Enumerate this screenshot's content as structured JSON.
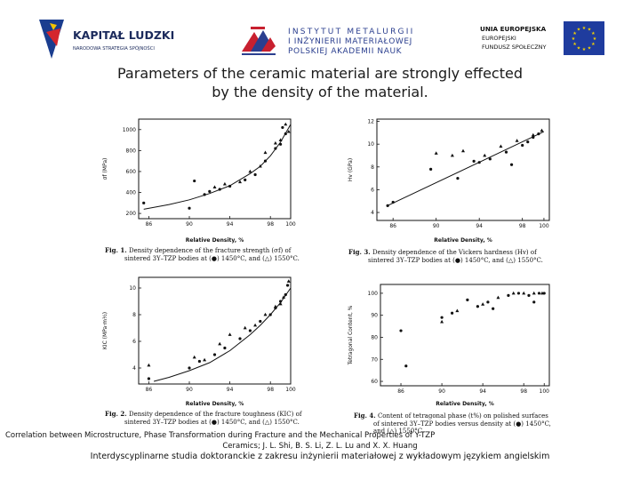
{
  "header": {
    "kapital_ludzki": {
      "title": "KAPITAŁ LUDZKI",
      "subtitle": "NARODOWA STRATEGIA SPÓJNOŚCI"
    },
    "institute": {
      "line1": "INSTYTUT METALURGII",
      "line2": "I INŻYNIERII MATERIAŁOWEJ",
      "line3": "POLSKIEJ AKADEMII NAUK"
    },
    "eu": {
      "line1": "UNIA EUROPEJSKA",
      "line2": "EUROPEJSKI",
      "line3": "FUNDUSZ SPOŁECZNY"
    }
  },
  "slide_title": {
    "line1": "Parameters of the ceramic material are strongly effected",
    "line2": "by the density of the material."
  },
  "figures": {
    "fig1": {
      "caption_label": "Fig. 1.",
      "caption_line1": "Density dependence of the fracture strength (σf) of",
      "caption_line2": "sintered 3Y–TZP bodies at (●) 1450°C, and (△) 1550°C.",
      "xlabel": "Relative Density, %",
      "ylabel": "σf (MPa)"
    },
    "fig2": {
      "caption_label": "Fig. 2.",
      "caption_line1": "Density dependence of the fracture toughness (KIC) of",
      "caption_line2": "sintered 3Y–TZP bodies at (●) 1450°C, and (△) 1550°C.",
      "xlabel": "Relative Density, %",
      "ylabel": "KIC (MPa·m½)"
    },
    "fig3": {
      "caption_label": "Fig. 3.",
      "caption_line1": "Density dependence of the Vickers hardness (Hv) of",
      "caption_line2": "sintered 3Y–TZP bodies at (●) 1450°C, and (△) 1550°C.",
      "xlabel": "Relative Density, %",
      "ylabel": "Hv (GPa)"
    },
    "fig4": {
      "caption_label": "Fig. 4.",
      "caption_line1": "Content of tetragonal phase (t%) on polished surfaces",
      "caption_line2": "of sintered 3Y–TZP bodies versus density at (●) 1450°C,",
      "caption_line3": "and (△) 1550°C.",
      "xlabel": "Relative Density, %",
      "ylabel": "Tetragonal Content, %"
    }
  },
  "footer": {
    "line1": "Correlation between Microstructure, Phase Transformation during Fracture and the Mechanical Properties of Y-TZP",
    "line2": "Ceramics; J. L. Shi, B. S. Li, Z. L. Lu  and X. X. Huang",
    "line3": "Interdyscyplinarne studia doktoranckie z zakresu inżynierii materiałowej z wykładowym językiem angielskim"
  },
  "chart_data": [
    {
      "type": "scatter",
      "id": "fig1",
      "title": "Density dependence of the fracture strength",
      "xlabel": "Relative Density, %",
      "ylabel": "σf (MPa)",
      "xlim": [
        85,
        100
      ],
      "ylim": [
        150,
        1100
      ],
      "xticks": [
        86,
        90,
        94,
        98,
        100
      ],
      "yticks": [
        200,
        400,
        600,
        800,
        1000
      ],
      "series": [
        {
          "name": "1450°C",
          "marker": "circle",
          "points": [
            [
              85.5,
              300
            ],
            [
              90,
              250
            ],
            [
              90.5,
              510
            ],
            [
              91.5,
              380
            ],
            [
              92,
              410
            ],
            [
              93,
              430
            ],
            [
              94,
              460
            ],
            [
              95.5,
              520
            ],
            [
              96.5,
              570
            ],
            [
              97.5,
              700
            ],
            [
              98.5,
              820
            ],
            [
              99,
              860
            ],
            [
              99.5,
              960
            ],
            [
              99.2,
              1020
            ]
          ]
        },
        {
          "name": "1550°C",
          "marker": "triangle",
          "points": [
            [
              92.5,
              450
            ],
            [
              93.5,
              480
            ],
            [
              95,
              500
            ],
            [
              96,
              600
            ],
            [
              97,
              650
            ],
            [
              97.5,
              780
            ],
            [
              98.5,
              870
            ],
            [
              99,
              900
            ],
            [
              99.5,
              1050
            ],
            [
              99.8,
              980
            ]
          ]
        }
      ],
      "fit": [
        [
          85.5,
          240
        ],
        [
          88,
          285
        ],
        [
          90,
          330
        ],
        [
          92,
          390
        ],
        [
          94,
          465
        ],
        [
          96,
          580
        ],
        [
          97,
          650
        ],
        [
          98,
          750
        ],
        [
          99,
          880
        ],
        [
          100,
          1050
        ]
      ]
    },
    {
      "type": "scatter",
      "id": "fig2",
      "title": "Density dependence of the fracture toughness",
      "xlabel": "Relative Density, %",
      "ylabel": "KIC (MPa·m½)",
      "xlim": [
        85,
        100
      ],
      "ylim": [
        2.8,
        10.8
      ],
      "xticks": [
        86,
        90,
        94,
        98,
        100
      ],
      "yticks": [
        4,
        6,
        8,
        10
      ],
      "series": [
        {
          "name": "1450°C",
          "marker": "circle",
          "points": [
            [
              86,
              3.2
            ],
            [
              90,
              4.0
            ],
            [
              91,
              4.5
            ],
            [
              92.5,
              5.0
            ],
            [
              93.5,
              5.5
            ],
            [
              95,
              6.2
            ],
            [
              96,
              6.8
            ],
            [
              97,
              7.5
            ],
            [
              98,
              8.0
            ],
            [
              98.5,
              8.5
            ],
            [
              99,
              9.0
            ],
            [
              99.5,
              9.5
            ],
            [
              99.7,
              10.2
            ]
          ]
        },
        {
          "name": "1550°C",
          "marker": "triangle",
          "points": [
            [
              86,
              4.2
            ],
            [
              90.5,
              4.8
            ],
            [
              91.5,
              4.6
            ],
            [
              93,
              5.8
            ],
            [
              94,
              6.5
            ],
            [
              95.5,
              7.0
            ],
            [
              96.5,
              7.2
            ],
            [
              97.5,
              8.0
            ],
            [
              98.5,
              8.6
            ],
            [
              99,
              8.8
            ],
            [
              99.3,
              9.3
            ],
            [
              99.8,
              10.5
            ]
          ]
        }
      ],
      "fit": [
        [
          86.5,
          3.0
        ],
        [
          88,
          3.3
        ],
        [
          90,
          3.8
        ],
        [
          92,
          4.4
        ],
        [
          94,
          5.3
        ],
        [
          96,
          6.5
        ],
        [
          97,
          7.2
        ],
        [
          98,
          8.0
        ],
        [
          99,
          8.9
        ],
        [
          100,
          10.0
        ]
      ]
    },
    {
      "type": "scatter",
      "id": "fig3",
      "title": "Density dependence of the Vickers hardness",
      "xlabel": "Relative Density, %",
      "ylabel": "Hv (GPa)",
      "xlim": [
        84.5,
        100.5
      ],
      "ylim": [
        3.3,
        12.2
      ],
      "xticks": [
        86,
        90,
        94,
        98,
        100
      ],
      "yticks": [
        4,
        6,
        8,
        10,
        12
      ],
      "series": [
        {
          "name": "1450°C",
          "marker": "circle",
          "points": [
            [
              85.5,
              4.6
            ],
            [
              86,
              4.9
            ],
            [
              89.5,
              7.8
            ],
            [
              92,
              7.0
            ],
            [
              93.5,
              8.5
            ],
            [
              94,
              8.4
            ],
            [
              95,
              8.7
            ],
            [
              96.5,
              9.3
            ],
            [
              97,
              8.2
            ],
            [
              98,
              9.9
            ],
            [
              98.5,
              10.2
            ],
            [
              99,
              10.6
            ],
            [
              99.5,
              10.9
            ]
          ]
        },
        {
          "name": "1550°C",
          "marker": "triangle",
          "points": [
            [
              90,
              9.2
            ],
            [
              91.5,
              9.0
            ],
            [
              92.5,
              9.4
            ],
            [
              94.5,
              9.0
            ],
            [
              96,
              9.8
            ],
            [
              97.5,
              10.3
            ],
            [
              99,
              10.8
            ],
            [
              99.8,
              11.2
            ]
          ]
        }
      ],
      "fit": [
        [
          85.5,
          4.6
        ],
        [
          100,
          11.1
        ]
      ]
    },
    {
      "type": "scatter",
      "id": "fig4",
      "title": "Content of tetragonal phase versus density",
      "xlabel": "Relative Density, %",
      "ylabel": "Tetragonal Content, %",
      "xlim": [
        84,
        100.5
      ],
      "ylim": [
        58,
        104
      ],
      "xticks": [
        86,
        90,
        94,
        98,
        100
      ],
      "yticks": [
        60,
        70,
        80,
        90,
        100
      ],
      "series": [
        {
          "name": "1450°C",
          "marker": "circle",
          "points": [
            [
              86,
              83
            ],
            [
              86.5,
              67
            ],
            [
              90,
              89
            ],
            [
              91,
              91
            ],
            [
              92.5,
              97
            ],
            [
              93.5,
              94
            ],
            [
              94.5,
              96
            ],
            [
              95,
              93
            ],
            [
              96.5,
              99
            ],
            [
              97.5,
              100
            ],
            [
              98.5,
              99
            ],
            [
              99,
              96
            ],
            [
              99.5,
              100
            ],
            [
              100,
              100
            ]
          ]
        },
        {
          "name": "1550°C",
          "marker": "triangle",
          "points": [
            [
              90,
              87
            ],
            [
              91.5,
              92
            ],
            [
              94,
              95
            ],
            [
              95.5,
              98
            ],
            [
              97,
              100
            ],
            [
              98,
              100
            ],
            [
              99,
              100
            ],
            [
              99.8,
              100
            ]
          ]
        }
      ],
      "fit": []
    }
  ]
}
